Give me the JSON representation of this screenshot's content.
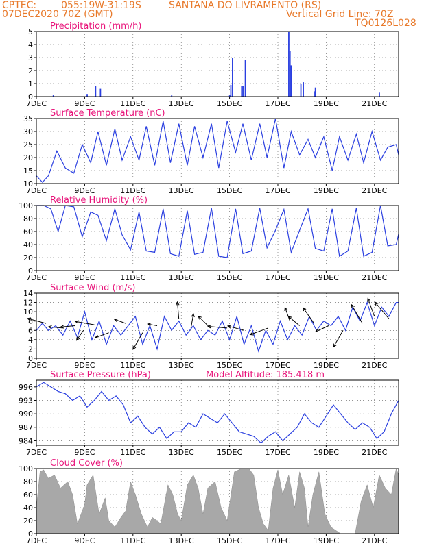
{
  "header": {
    "left1": "CPTEC:",
    "coords": "055:19W-31:19S",
    "location": "SANTANA DO LIVRAMENTO (RS)",
    "run": "07DEC2020 70Z (GMT)",
    "grid_note": "Vertical Grid Line: 70Z",
    "code": "TQ0126L028"
  },
  "colors": {
    "header": "#e8792a",
    "title": "#e8147a",
    "line": "#2a3fe0",
    "cloud": "#a8a8a8"
  },
  "chart_data": [
    {
      "type": "bar",
      "title": "Precipitation (mm/h)",
      "ylim": [
        0,
        5
      ],
      "yticks": [
        0,
        1,
        2,
        3,
        4,
        5
      ],
      "x_range": [
        7,
        22
      ],
      "x_ticks": [
        "7DEC",
        "9DEC",
        "11DEC",
        "13DEC",
        "15DEC",
        "17DEC",
        "19DEC",
        "21DEC"
      ],
      "points": [
        {
          "x": 7.7,
          "y": 0.1
        },
        {
          "x": 9.1,
          "y": 0.2
        },
        {
          "x": 9.45,
          "y": 0.8
        },
        {
          "x": 9.65,
          "y": 0.6
        },
        {
          "x": 12.6,
          "y": 0.1
        },
        {
          "x": 15.0,
          "y": 0.1
        },
        {
          "x": 15.05,
          "y": 0.9
        },
        {
          "x": 15.12,
          "y": 3.0
        },
        {
          "x": 15.5,
          "y": 0.8
        },
        {
          "x": 15.55,
          "y": 0.8
        },
        {
          "x": 15.65,
          "y": 2.8
        },
        {
          "x": 17.45,
          "y": 5.0
        },
        {
          "x": 17.5,
          "y": 3.5
        },
        {
          "x": 17.55,
          "y": 2.4
        },
        {
          "x": 17.95,
          "y": 1.0
        },
        {
          "x": 18.05,
          "y": 1.1
        },
        {
          "x": 18.5,
          "y": 0.4
        },
        {
          "x": 18.55,
          "y": 0.7
        },
        {
          "x": 21.2,
          "y": 0.3
        }
      ]
    },
    {
      "type": "line",
      "title": "Surface Temperature (nC)",
      "ylim": [
        10,
        35
      ],
      "yticks": [
        10,
        15,
        20,
        25,
        30,
        35
      ],
      "x_range": [
        7,
        22
      ],
      "x_ticks": [
        "7DEC",
        "9DEC",
        "11DEC",
        "13DEC",
        "15DEC",
        "17DEC",
        "19DEC",
        "21DEC"
      ],
      "x": [
        7.0,
        7.25,
        7.5,
        7.85,
        8.2,
        8.55,
        8.9,
        9.25,
        9.55,
        9.9,
        10.25,
        10.55,
        10.9,
        11.25,
        11.55,
        11.9,
        12.25,
        12.55,
        12.9,
        13.25,
        13.55,
        13.9,
        14.25,
        14.55,
        14.9,
        15.25,
        15.55,
        15.9,
        16.25,
        16.55,
        16.9,
        17.25,
        17.55,
        17.9,
        18.25,
        18.55,
        18.9,
        19.25,
        19.55,
        19.9,
        20.25,
        20.55,
        20.9,
        21.25,
        21.55,
        21.9,
        22.0
      ],
      "y": [
        13,
        10.5,
        13,
        22.5,
        16,
        14,
        25,
        18,
        30,
        17,
        31,
        19,
        28,
        19,
        32,
        17,
        34,
        18,
        33,
        17,
        32,
        20,
        33,
        16,
        34,
        22,
        33,
        19,
        33,
        20,
        35,
        16,
        30,
        21,
        27,
        20,
        28,
        15,
        28,
        19,
        29,
        18,
        30,
        19,
        24,
        25,
        21
      ]
    },
    {
      "type": "line",
      "title": "Relative Humidity (%)",
      "ylim": [
        0,
        100
      ],
      "yticks": [
        0,
        20,
        40,
        60,
        80,
        100
      ],
      "x_range": [
        7,
        22
      ],
      "x_ticks": [
        "7DEC",
        "9DEC",
        "11DEC",
        "13DEC",
        "15DEC",
        "17DEC",
        "19DEC",
        "21DEC"
      ],
      "x": [
        7.0,
        7.3,
        7.6,
        7.9,
        8.2,
        8.55,
        8.9,
        9.25,
        9.55,
        9.9,
        10.25,
        10.55,
        10.9,
        11.25,
        11.55,
        11.9,
        12.25,
        12.55,
        12.9,
        13.25,
        13.55,
        13.9,
        14.25,
        14.55,
        14.9,
        15.25,
        15.55,
        15.9,
        16.25,
        16.55,
        16.9,
        17.25,
        17.55,
        17.9,
        18.25,
        18.55,
        18.9,
        19.25,
        19.55,
        19.9,
        20.25,
        20.55,
        20.9,
        21.25,
        21.55,
        21.9,
        22.0
      ],
      "y": [
        100,
        100,
        95,
        60,
        100,
        98,
        52,
        90,
        85,
        46,
        95,
        55,
        32,
        90,
        30,
        28,
        95,
        26,
        22,
        92,
        25,
        28,
        96,
        22,
        20,
        95,
        26,
        30,
        96,
        35,
        62,
        94,
        28,
        62,
        95,
        34,
        30,
        95,
        22,
        30,
        96,
        22,
        28,
        100,
        38,
        40,
        56
      ]
    },
    {
      "type": "line",
      "title": "Surface Wind (m/s)",
      "ylim": [
        0,
        14
      ],
      "yticks": [
        0,
        2,
        4,
        6,
        8,
        10,
        12,
        14
      ],
      "x_range": [
        7,
        22
      ],
      "x_ticks": [
        "7DEC",
        "9DEC",
        "11DEC",
        "13DEC",
        "15DEC",
        "17DEC",
        "19DEC",
        "21DEC"
      ],
      "x": [
        7.0,
        7.25,
        7.5,
        7.8,
        8.1,
        8.4,
        8.7,
        9.0,
        9.3,
        9.6,
        9.9,
        10.2,
        10.5,
        10.8,
        11.1,
        11.4,
        11.7,
        12.0,
        12.3,
        12.6,
        12.9,
        13.2,
        13.5,
        13.8,
        14.1,
        14.4,
        14.7,
        15.0,
        15.3,
        15.6,
        15.9,
        16.2,
        16.5,
        16.8,
        17.1,
        17.4,
        17.7,
        18.0,
        18.3,
        18.6,
        18.9,
        19.2,
        19.5,
        19.8,
        20.1,
        20.4,
        20.7,
        21.0,
        21.3,
        21.6,
        21.9,
        22.0
      ],
      "y": [
        6,
        7.5,
        6,
        7,
        5,
        8,
        4.5,
        10,
        4,
        8,
        3,
        7,
        5,
        7,
        9,
        3,
        7,
        2,
        9,
        6,
        8,
        5,
        7,
        4,
        6,
        5,
        8,
        4,
        9,
        3,
        7,
        1.5,
        6,
        3,
        8,
        4,
        7,
        5,
        9,
        6,
        8,
        7,
        9,
        6,
        11,
        8,
        12,
        7,
        11,
        9,
        12,
        12
      ]
    },
    {
      "type": "line",
      "title": "Surface Pressure (hPa)",
      "annotation": "Model Altitude: 185.418 m",
      "ylim": [
        983,
        997.5
      ],
      "yticks": [
        984,
        987,
        990,
        993,
        996
      ],
      "x_range": [
        7,
        22
      ],
      "x_ticks": [
        "7DEC",
        "9DEC",
        "11DEC",
        "13DEC",
        "15DEC",
        "17DEC",
        "19DEC",
        "21DEC"
      ],
      "x": [
        7.0,
        7.3,
        7.6,
        7.9,
        8.2,
        8.5,
        8.8,
        9.1,
        9.4,
        9.7,
        10.0,
        10.3,
        10.6,
        10.9,
        11.2,
        11.5,
        11.8,
        12.1,
        12.4,
        12.7,
        13.0,
        13.3,
        13.6,
        13.9,
        14.2,
        14.5,
        14.8,
        15.1,
        15.4,
        15.7,
        16.0,
        16.3,
        16.6,
        16.9,
        17.2,
        17.5,
        17.8,
        18.1,
        18.4,
        18.7,
        19.0,
        19.3,
        19.6,
        19.9,
        20.2,
        20.5,
        20.8,
        21.1,
        21.4,
        21.7,
        22.0
      ],
      "y": [
        996,
        997,
        996,
        995,
        994.5,
        993,
        994,
        991.5,
        993,
        995,
        993,
        994,
        992,
        988,
        989.5,
        987,
        985.5,
        987,
        984.5,
        986,
        986,
        988,
        987,
        990,
        989,
        988,
        990,
        988,
        986,
        985.5,
        985,
        983.5,
        985,
        986,
        984,
        985.5,
        987,
        990,
        988,
        987,
        989.5,
        992,
        990,
        988,
        986.5,
        988,
        987,
        984.5,
        986,
        990,
        993
      ]
    },
    {
      "type": "area",
      "title": "Cloud Cover (%)",
      "ylim": [
        0,
        100
      ],
      "yticks": [
        0,
        20,
        40,
        60,
        80,
        100
      ],
      "x_range": [
        7,
        22
      ],
      "x_ticks": [
        "7DEC",
        "9DEC",
        "11DEC",
        "13DEC",
        "15DEC",
        "17DEC",
        "19DEC",
        "21DEC"
      ],
      "x": [
        7.0,
        7.15,
        7.3,
        7.5,
        7.75,
        8.0,
        8.3,
        8.5,
        8.7,
        9.0,
        9.1,
        9.35,
        9.6,
        9.85,
        10.0,
        10.25,
        10.5,
        10.7,
        10.9,
        11.1,
        11.35,
        11.6,
        11.8,
        12.0,
        12.15,
        12.45,
        12.65,
        12.85,
        13.0,
        13.25,
        13.5,
        13.7,
        13.9,
        14.1,
        14.4,
        14.65,
        14.9,
        15.2,
        15.5,
        15.8,
        16.0,
        16.2,
        16.4,
        16.6,
        16.8,
        17.0,
        17.2,
        17.45,
        17.7,
        17.9,
        18.1,
        18.25,
        18.45,
        18.7,
        18.95,
        19.2,
        19.4,
        19.6,
        19.8,
        20.0,
        20.2,
        20.45,
        20.7,
        20.95,
        21.2,
        21.45,
        21.7,
        21.9,
        22.0
      ],
      "y": [
        40,
        95,
        98,
        85,
        90,
        70,
        80,
        60,
        15,
        45,
        75,
        90,
        30,
        55,
        20,
        10,
        25,
        35,
        80,
        60,
        30,
        10,
        25,
        20,
        15,
        75,
        60,
        30,
        20,
        75,
        90,
        70,
        30,
        70,
        80,
        40,
        20,
        95,
        100,
        100,
        90,
        40,
        15,
        5,
        70,
        98,
        60,
        90,
        40,
        95,
        70,
        10,
        60,
        95,
        30,
        10,
        5,
        0,
        0,
        0,
        0,
        50,
        75,
        40,
        90,
        70,
        60,
        100,
        90
      ]
    }
  ],
  "wind_arrows": [
    {
      "x": 7.4,
      "y": 7.5,
      "dir": 165,
      "len": 8
    },
    {
      "x": 8.1,
      "y": 6.5,
      "dir": 175,
      "len": 6
    },
    {
      "x": 8.6,
      "y": 7.0,
      "dir": 185,
      "len": 6
    },
    {
      "x": 8.95,
      "y": 6.0,
      "dir": 235,
      "len": 5
    },
    {
      "x": 9.4,
      "y": 7.2,
      "dir": 170,
      "len": 8
    },
    {
      "x": 10.0,
      "y": 5.5,
      "dir": 200,
      "len": 6
    },
    {
      "x": 10.7,
      "y": 7.5,
      "dir": 160,
      "len": 5
    },
    {
      "x": 11.4,
      "y": 5.5,
      "dir": 240,
      "len": 8
    },
    {
      "x": 12.0,
      "y": 7.0,
      "dir": 170,
      "len": 4
    },
    {
      "x": 12.9,
      "y": 8.5,
      "dir": 95,
      "len": 7
    },
    {
      "x": 13.4,
      "y": 6.5,
      "dir": 80,
      "len": 6
    },
    {
      "x": 14.2,
      "y": 6.5,
      "dir": 135,
      "len": 7
    },
    {
      "x": 14.9,
      "y": 6.5,
      "dir": 175,
      "len": 8
    },
    {
      "x": 15.6,
      "y": 6.0,
      "dir": 165,
      "len": 7
    },
    {
      "x": 16.6,
      "y": 6.5,
      "dir": 200,
      "len": 8
    },
    {
      "x": 17.5,
      "y": 8.0,
      "dir": 110,
      "len": 6
    },
    {
      "x": 17.9,
      "y": 7.0,
      "dir": 140,
      "len": 6
    },
    {
      "x": 18.5,
      "y": 7.5,
      "dir": 125,
      "len": 8
    },
    {
      "x": 19.1,
      "y": 7.0,
      "dir": 205,
      "len": 6
    },
    {
      "x": 19.7,
      "y": 6.0,
      "dir": 240,
      "len": 8
    },
    {
      "x": 20.5,
      "y": 7.5,
      "dir": 120,
      "len": 9
    },
    {
      "x": 21.0,
      "y": 9.0,
      "dir": 110,
      "len": 8
    },
    {
      "x": 21.6,
      "y": 8.5,
      "dir": 130,
      "len": 9
    }
  ]
}
